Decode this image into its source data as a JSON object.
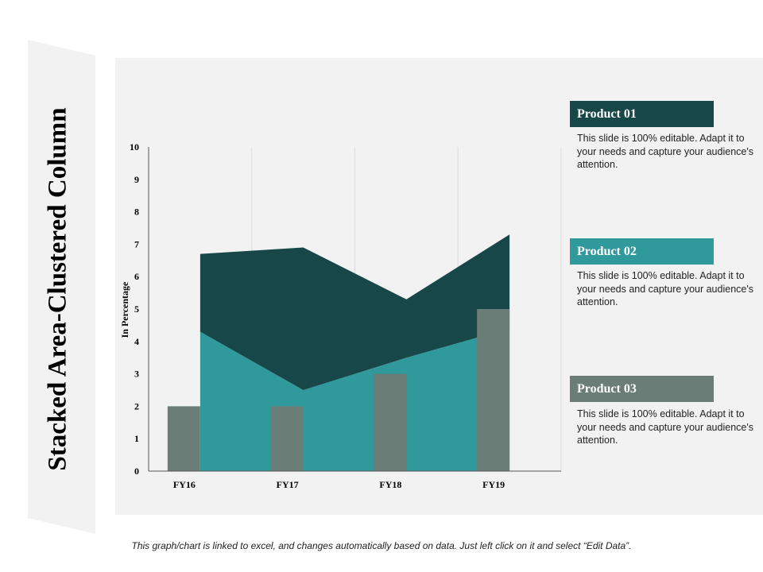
{
  "title": "Stacked Area-Clustered Column",
  "footer": "This graph/chart is linked to excel, and changes automatically based on data. Just left click on it and select “Edit Data”.",
  "colors": {
    "product_01": "#18474a",
    "product_02": "#30999b",
    "product_03": "#6a7d77",
    "panel": "#f2f2f2",
    "banner": "#f2f2f2"
  },
  "products": [
    {
      "label": "Product 01",
      "description": "This slide is 100% editable. Adapt it to your needs and capture your audience's attention."
    },
    {
      "label": "Product 02",
      "description": "This slide is 100% editable. Adapt it to your needs and capture your audience's attention."
    },
    {
      "label": "Product 03",
      "description": "This slide is 100% editable. Adapt it to your needs and capture your audience's attention."
    }
  ],
  "chart_data": {
    "type": "area",
    "title": "",
    "categories": [
      "FY16",
      "FY17",
      "FY18",
      "FY19"
    ],
    "ylabel": "In Percentage",
    "xlabel": "",
    "ylim": [
      0,
      10
    ],
    "yticks": [
      0,
      1,
      2,
      3,
      4,
      5,
      6,
      7,
      8,
      9,
      10
    ],
    "grid": "vertical",
    "stacked_area": [
      {
        "name": "Product 02",
        "values": [
          4.3,
          2.5,
          3.5,
          4.4
        ]
      },
      {
        "name": "Product 01",
        "values": [
          2.4,
          4.4,
          1.8,
          2.9
        ]
      }
    ],
    "columns": [
      {
        "name": "Product 03",
        "values": [
          2,
          2,
          3,
          5
        ]
      }
    ]
  }
}
